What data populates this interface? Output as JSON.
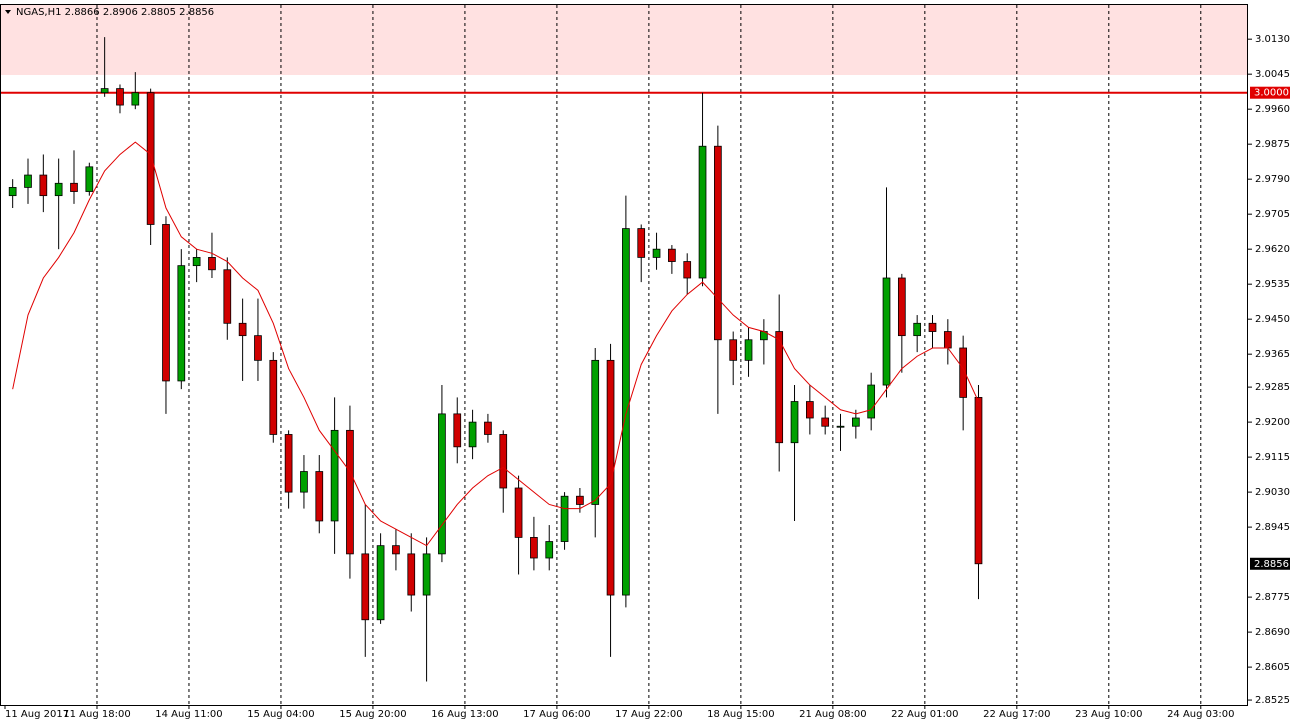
{
  "chart_data": {
    "type": "candlestick",
    "header": "NGAS,H1  2.8866 2.8906 2.8805 2.8856",
    "ylim": [
      2.8513,
      3.0213
    ],
    "yticks": [
      {
        "value": 3.013,
        "label": "3.0130"
      },
      {
        "value": 3.0045,
        "label": "3.0045"
      },
      {
        "value": 2.996,
        "label": "2.9960"
      },
      {
        "value": 2.9875,
        "label": "2.9875"
      },
      {
        "value": 2.979,
        "label": "2.9790"
      },
      {
        "value": 2.9705,
        "label": "2.9705"
      },
      {
        "value": 2.962,
        "label": "2.9620"
      },
      {
        "value": 2.9535,
        "label": "2.9535"
      },
      {
        "value": 2.945,
        "label": "2.9450"
      },
      {
        "value": 2.9365,
        "label": "2.9365"
      },
      {
        "value": 2.9285,
        "label": "2.9285"
      },
      {
        "value": 2.92,
        "label": "2.9200"
      },
      {
        "value": 2.9115,
        "label": "2.9115"
      },
      {
        "value": 2.903,
        "label": "2.9030"
      },
      {
        "value": 2.8945,
        "label": "2.8945"
      },
      {
        "value": 2.8775,
        "label": "2.8775"
      },
      {
        "value": 2.869,
        "label": "2.8690"
      },
      {
        "value": 2.8605,
        "label": "2.8605"
      },
      {
        "value": 2.8525,
        "label": "2.8525"
      }
    ],
    "xlim": [
      0,
      81.08
    ],
    "xticks": [
      {
        "value": 0,
        "label": "11 Aug 2017"
      },
      {
        "value": 6,
        "label": "11 Aug 18:00"
      },
      {
        "value": 12,
        "label": "14 Aug 11:00"
      },
      {
        "value": 18,
        "label": "15 Aug 04:00"
      },
      {
        "value": 24,
        "label": "15 Aug 20:00"
      },
      {
        "value": 30,
        "label": "16 Aug 13:00"
      },
      {
        "value": 36,
        "label": "17 Aug 06:00"
      },
      {
        "value": 42,
        "label": "17 Aug 22:00"
      },
      {
        "value": 48,
        "label": "18 Aug 15:00"
      },
      {
        "value": 54,
        "label": "21 Aug 08:00"
      },
      {
        "value": 60,
        "label": "22 Aug 01:00"
      },
      {
        "value": 66,
        "label": "22 Aug 17:00"
      },
      {
        "value": 72,
        "label": "23 Aug 10:00"
      },
      {
        "value": 78,
        "label": "24 Aug 03:00"
      }
    ],
    "x": [
      0.5,
      1.5,
      2.5,
      3.5,
      4.5,
      5.5,
      6.5,
      7.5,
      8.5,
      9.5,
      10.5,
      11.5,
      12.5,
      13.5,
      14.5,
      15.5,
      16.5,
      17.5,
      18.5,
      19.5,
      20.5,
      21.5,
      22.5,
      23.5,
      24.5,
      25.5,
      26.5,
      27.5,
      28.5,
      29.5,
      30.5,
      31.5,
      32.5,
      33.5,
      34.5,
      35.5,
      36.5,
      37.5,
      38.5,
      39.5,
      40.5,
      41.5,
      42.5,
      43.5,
      44.5,
      45.5,
      46.5,
      47.5,
      48.5,
      49.5,
      50.5,
      51.5,
      52.5,
      53.5,
      54.5,
      55.5,
      56.5,
      57.5,
      58.5,
      59.5,
      60.5,
      61.5,
      62.5,
      63.5
    ],
    "open": [
      2.975,
      2.977,
      2.98,
      2.975,
      2.978,
      2.976,
      3.0,
      3.001,
      2.997,
      3.0,
      2.968,
      2.93,
      2.958,
      2.96,
      2.957,
      2.944,
      2.941,
      2.935,
      2.917,
      2.903,
      2.908,
      2.896,
      2.918,
      2.888,
      2.872,
      2.89,
      2.888,
      2.878,
      2.888,
      2.922,
      2.914,
      2.92,
      2.917,
      2.904,
      2.892,
      2.887,
      2.891,
      2.902,
      2.9,
      2.935,
      2.878,
      2.967,
      2.96,
      2.962,
      2.959,
      2.955,
      2.987,
      2.94,
      2.935,
      2.94,
      2.942,
      2.915,
      2.925,
      2.921,
      2.919,
      2.919,
      2.921,
      2.929,
      2.955,
      2.941,
      2.944,
      2.942,
      2.938,
      2.926
    ],
    "high": [
      2.979,
      2.984,
      2.985,
      2.984,
      2.986,
      2.983,
      3.0135,
      3.002,
      3.005,
      3.001,
      2.97,
      2.962,
      2.962,
      2.966,
      2.96,
      2.95,
      2.95,
      2.937,
      2.918,
      2.912,
      2.912,
      2.926,
      2.924,
      2.9,
      2.893,
      2.894,
      2.893,
      2.892,
      2.929,
      2.926,
      2.923,
      2.922,
      2.918,
      2.907,
      2.897,
      2.895,
      2.903,
      2.904,
      2.938,
      2.939,
      2.975,
      2.968,
      2.966,
      2.963,
      2.961,
      3.0,
      2.992,
      2.942,
      2.943,
      2.945,
      2.951,
      2.929,
      2.929,
      2.924,
      2.922,
      2.923,
      2.932,
      2.977,
      2.956,
      2.946,
      2.946,
      2.945,
      2.941,
      2.929
    ],
    "low": [
      2.972,
      2.973,
      2.971,
      2.962,
      2.973,
      2.975,
      2.999,
      2.995,
      2.996,
      2.963,
      2.922,
      2.928,
      2.954,
      2.955,
      2.94,
      2.93,
      2.93,
      2.915,
      2.899,
      2.899,
      2.893,
      2.888,
      2.882,
      2.863,
      2.871,
      2.884,
      2.874,
      2.857,
      2.886,
      2.91,
      2.911,
      2.915,
      2.898,
      2.883,
      2.884,
      2.884,
      2.889,
      2.898,
      2.892,
      2.863,
      2.875,
      2.954,
      2.957,
      2.956,
      2.951,
      2.953,
      2.922,
      2.929,
      2.931,
      2.934,
      2.908,
      2.896,
      2.917,
      2.917,
      2.913,
      2.916,
      2.918,
      2.926,
      2.932,
      2.937,
      2.938,
      2.934,
      2.918,
      2.877
    ],
    "close": [
      2.977,
      2.98,
      2.975,
      2.978,
      2.976,
      2.982,
      3.001,
      2.997,
      3.0,
      2.968,
      2.93,
      2.958,
      2.96,
      2.957,
      2.944,
      2.941,
      2.935,
      2.917,
      2.903,
      2.908,
      2.896,
      2.918,
      2.888,
      2.872,
      2.89,
      2.888,
      2.878,
      2.888,
      2.922,
      2.914,
      2.92,
      2.917,
      2.904,
      2.892,
      2.887,
      2.891,
      2.902,
      2.9,
      2.935,
      2.878,
      2.967,
      2.96,
      2.962,
      2.959,
      2.955,
      2.987,
      2.94,
      2.935,
      2.94,
      2.942,
      2.915,
      2.925,
      2.921,
      2.919,
      2.919,
      2.921,
      2.929,
      2.955,
      2.941,
      2.944,
      2.942,
      2.938,
      2.926,
      2.8856
    ],
    "up_color": "#00a000",
    "down_color": "#d00000",
    "ma": {
      "color": "#e00000",
      "values": [
        2.928,
        2.946,
        2.955,
        2.96,
        2.966,
        2.974,
        2.981,
        2.985,
        2.988,
        2.985,
        2.972,
        2.965,
        2.962,
        2.961,
        2.959,
        2.955,
        2.952,
        2.944,
        2.933,
        2.926,
        2.918,
        2.913,
        2.908,
        2.9,
        2.896,
        2.894,
        2.892,
        2.89,
        2.895,
        2.9,
        2.904,
        2.907,
        2.909,
        2.906,
        2.903,
        2.9,
        2.899,
        2.899,
        2.901,
        2.905,
        2.922,
        2.934,
        2.941,
        2.947,
        2.951,
        2.954,
        2.95,
        2.946,
        2.943,
        2.942,
        2.94,
        2.933,
        2.929,
        2.926,
        2.923,
        2.922,
        2.923,
        2.928,
        2.933,
        2.936,
        2.938,
        2.938,
        2.933,
        2.925
      ]
    },
    "zone": {
      "color": "#ffe1e1",
      "range": [
        3.0043,
        3.0213
      ]
    },
    "level": {
      "value": 3.0,
      "label": "3.0000",
      "color": "#e00000"
    },
    "last_price": {
      "value": 2.8856,
      "label": "2.8856"
    }
  }
}
